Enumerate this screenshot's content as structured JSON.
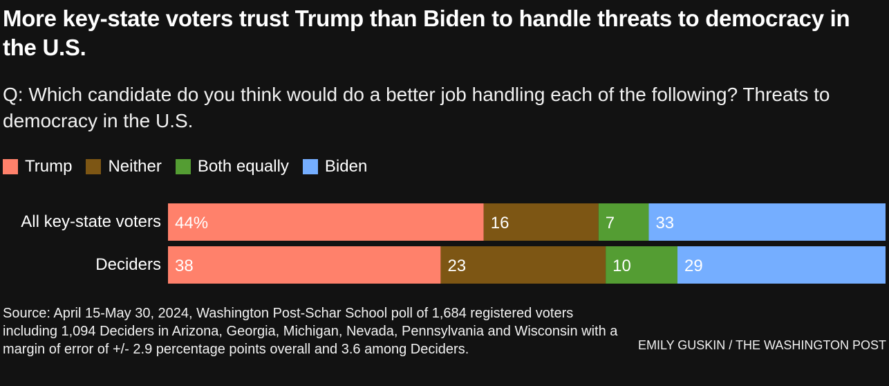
{
  "title": "More key-state voters trust Trump than Biden to handle threats to democracy in the U.S.",
  "subtitle": "Q: Which candidate do you think would do a better job handling each of the following? Threats to democracy in the U.S.",
  "legend": [
    {
      "label": "Trump",
      "color": "#ff816b"
    },
    {
      "label": "Neither",
      "color": "#7d5614"
    },
    {
      "label": "Both equally",
      "color": "#549d33"
    },
    {
      "label": "Biden",
      "color": "#75aeff"
    }
  ],
  "chart_data": {
    "type": "bar",
    "orientation": "horizontal",
    "stacked": true,
    "title": "More key-state voters trust Trump than Biden to handle threats to democracy in the U.S.",
    "subtitle": "Q: Which candidate do you think would do a better job handling each of the following? Threats to democracy in the U.S.",
    "categories": [
      "All key-state voters",
      "Deciders"
    ],
    "series": [
      {
        "name": "Trump",
        "color": "#ff816b",
        "values": [
          44,
          38
        ],
        "labels": [
          "44%",
          "38"
        ]
      },
      {
        "name": "Neither",
        "color": "#7d5614",
        "values": [
          16,
          23
        ],
        "labels": [
          "16",
          "23"
        ]
      },
      {
        "name": "Both equally",
        "color": "#549d33",
        "values": [
          7,
          10
        ],
        "labels": [
          "7",
          "10"
        ]
      },
      {
        "name": "Biden",
        "color": "#75aeff",
        "values": [
          33,
          29
        ],
        "labels": [
          "33",
          "29"
        ]
      }
    ],
    "xlim": [
      0,
      100
    ],
    "grid": false,
    "legend_position": "top-left"
  },
  "source": "Source: April 15-May 30, 2024, Washington Post-Schar School poll of 1,684 registered voters including 1,094 Deciders in Arizona, Georgia, Michigan, Nevada, Pennsylvania and Wisconsin with a margin of error of +/- 2.9 percentage points overall and 3.6 among Deciders.",
  "credit": "EMILY GUSKIN / THE WASHINGTON POST"
}
